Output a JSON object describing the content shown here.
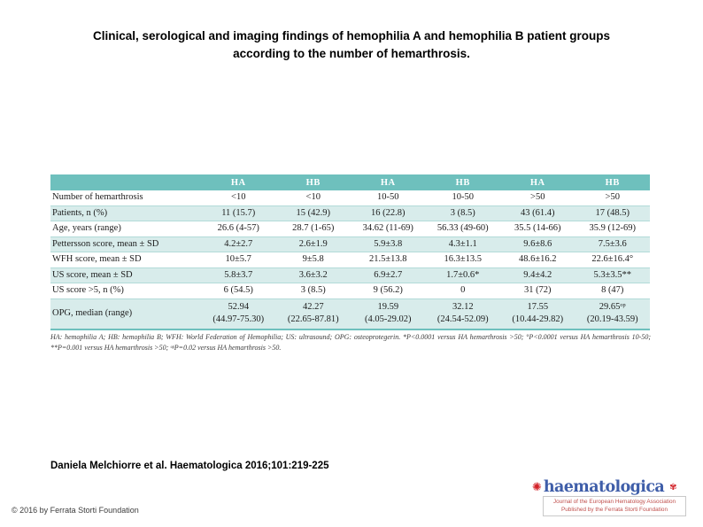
{
  "slide": {
    "title": "Clinical, serological and imaging findings of hemophilia A and hemophilia B patient groups\naccording to the number of hemarthrosis.",
    "citation": "Daniela Melchiorre et al. Haematologica 2016;101:219-225",
    "copyright": "© 2016 by Ferrata Storti Foundation"
  },
  "chart_data": {
    "type": "table",
    "columns": [
      "HA",
      "HB",
      "HA",
      "HB",
      "HA",
      "HB"
    ],
    "rows": [
      {
        "label": "Number of hemarthrosis",
        "values": [
          "<10",
          "<10",
          "10-50",
          "10-50",
          ">50",
          ">50"
        ]
      },
      {
        "label": "Patients, n (%)",
        "values": [
          "11 (15.7)",
          "15 (42.9)",
          "16 (22.8)",
          "3 (8.5)",
          "43 (61.4)",
          "17 (48.5)"
        ]
      },
      {
        "label": "Age, years (range)",
        "values": [
          "26.6 (4-57)",
          "28.7 (1-65)",
          "34.62 (11-69)",
          "56.33 (49-60)",
          "35.5 (14-66)",
          "35.9 (12-69)"
        ]
      },
      {
        "label": "Pettersson score, mean ± SD",
        "values": [
          "4.2±2.7",
          "2.6±1.9",
          "5.9±3.8",
          "4.3±1.1",
          "9.6±8.6",
          "7.5±3.6"
        ]
      },
      {
        "label": "WFH score, mean ± SD",
        "values": [
          "10±5.7",
          "9±5.8",
          "21.5±13.8",
          "16.3±13.5",
          "48.6±16.2",
          "22.6±16.4°"
        ]
      },
      {
        "label": "US score, mean ± SD",
        "values": [
          "5.8±3.7",
          "3.6±3.2",
          "6.9±2.7",
          "1.7±0.6*",
          "9.4±4.2",
          "5.3±3.5**"
        ]
      },
      {
        "label": "US score >5, n (%)",
        "values": [
          "6 (54.5)",
          "3 (8.5)",
          "9 (56.2)",
          "0",
          "31 (72)",
          "8 (47)"
        ]
      },
      {
        "label": "OPG, median (range)",
        "values": [
          "52.94\n(44.97-75.30)",
          "42.27\n(22.65-87.81)",
          "19.59\n(4.05-29.02)",
          "32.12\n(24.54-52.09)",
          "17.55\n(10.44-29.82)",
          "29.65ᵒᵖ\n(20.19-43.59)"
        ]
      }
    ],
    "footnote": "HA: hemophilia A; HB: hemophilia B; WFH: World Federation of Hemophilia; US: ultrasound; OPG: osteoprotegerin. *P<0.0001 versus HA hemarthrosis >50; °P<0.0001 versus HA hemarthrosis 10-50; **P=0.001 versus HA hemarthrosis >50; ᵒᵖP=0.02 versus HA hemarthrosis >50.",
    "header_color": "#6ec0bd",
    "shaded_row_color": "#d8eceb"
  },
  "logo": {
    "flower_icon": "✺",
    "brand": "haematologica",
    "emblem_icon": "✾",
    "tagline_line1": "Journal of the European Hematology Association",
    "tagline_line2": "Published by the Ferrata Storti Foundation",
    "brand_color": "#3f5ea9",
    "accent_color": "#d22027"
  }
}
